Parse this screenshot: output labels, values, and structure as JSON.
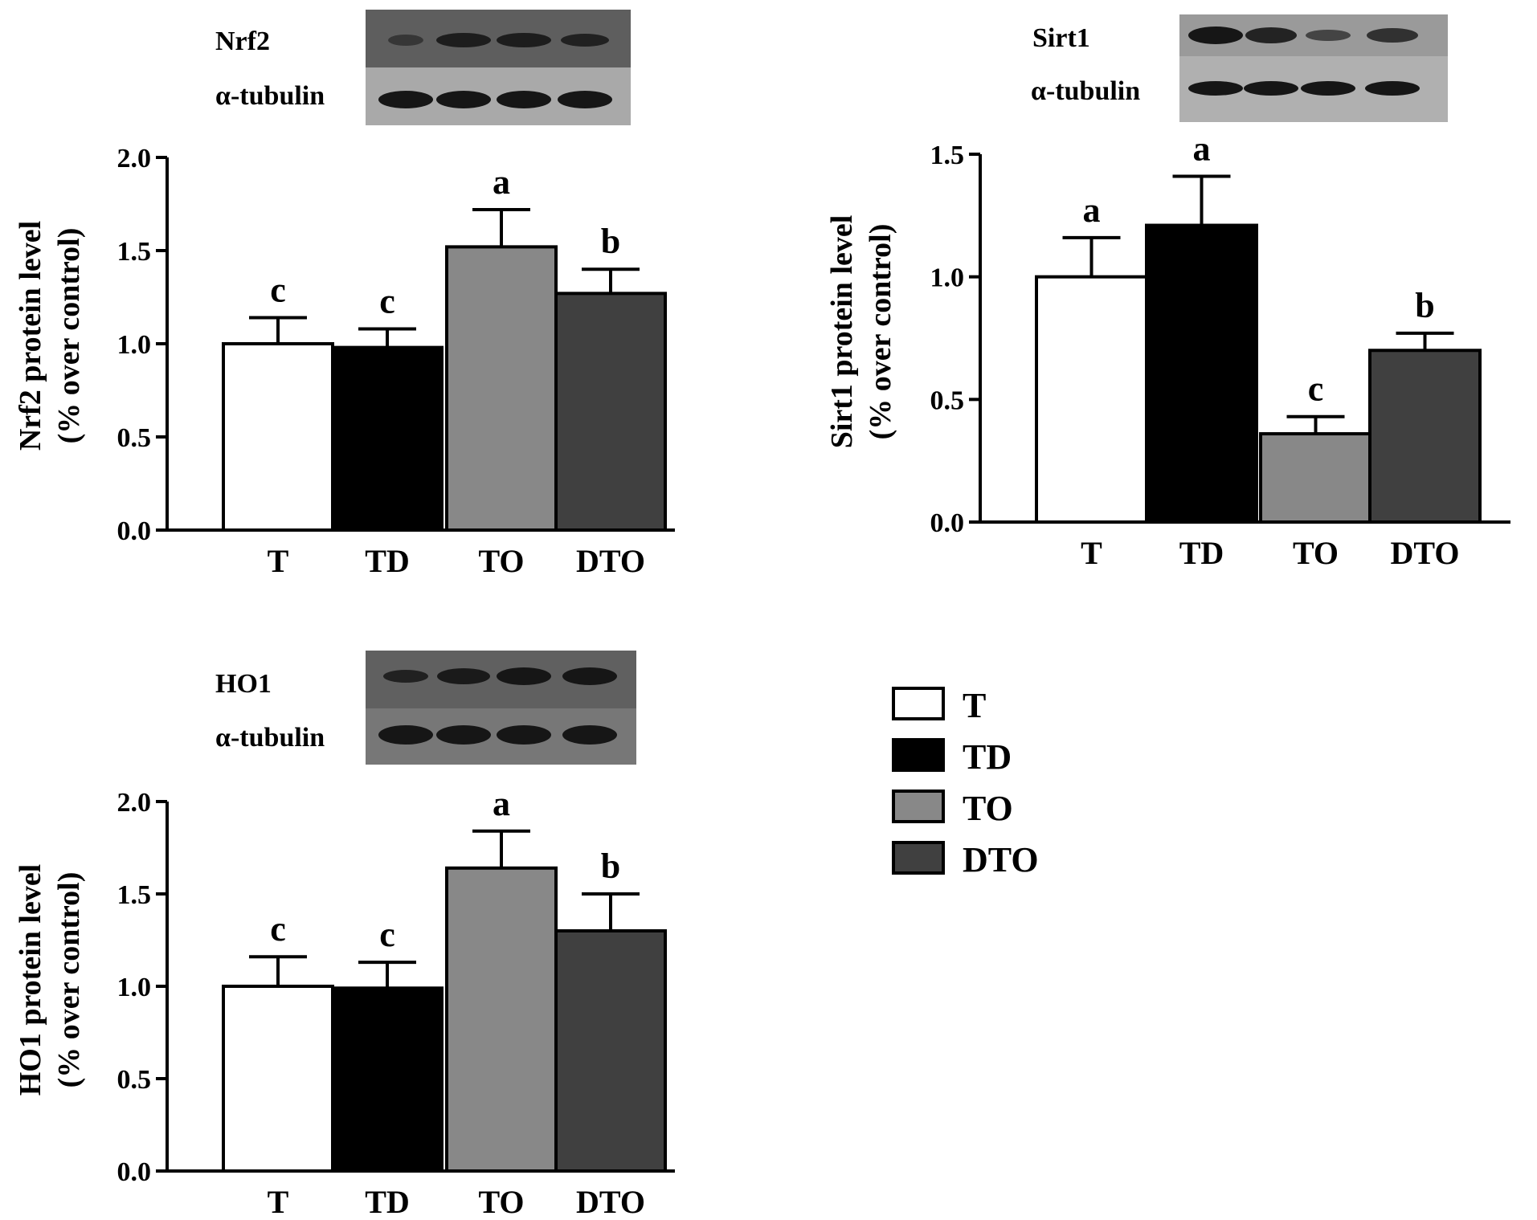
{
  "chart_data": [
    {
      "type": "bar",
      "panel": "Nrf2",
      "blot": {
        "labels": [
          "Nrf2",
          "α-tubulin"
        ]
      },
      "categories": [
        "T",
        "TD",
        "TO",
        "DTO"
      ],
      "values": [
        1.0,
        0.98,
        1.52,
        1.27
      ],
      "errors": [
        0.14,
        0.1,
        0.2,
        0.13
      ],
      "significance": [
        "c",
        "c",
        "a",
        "b"
      ],
      "ylabel_lines": [
        "Nrf2 protein level",
        "(% over control)"
      ],
      "ylim": [
        0,
        2.0
      ],
      "yticks": [
        "0.0",
        "0.5",
        "1.0",
        "1.5",
        "2.0"
      ]
    },
    {
      "type": "bar",
      "panel": "Sirt1",
      "blot": {
        "labels": [
          "Sirt1",
          "α-tubulin"
        ]
      },
      "categories": [
        "T",
        "TD",
        "TO",
        "DTO"
      ],
      "values": [
        1.0,
        1.21,
        0.36,
        0.7
      ],
      "errors": [
        0.16,
        0.2,
        0.07,
        0.07
      ],
      "significance": [
        "a",
        "a",
        "c",
        "b"
      ],
      "ylabel_lines": [
        "Sirt1 protein level",
        "(% over control)"
      ],
      "ylim": [
        0,
        1.5
      ],
      "yticks": [
        "0.0",
        "0.5",
        "1.0",
        "1.5"
      ]
    },
    {
      "type": "bar",
      "panel": "HO1",
      "blot": {
        "labels": [
          "HO1",
          "α-tubulin"
        ]
      },
      "categories": [
        "T",
        "TD",
        "TO",
        "DTO"
      ],
      "values": [
        1.0,
        0.99,
        1.64,
        1.3
      ],
      "errors": [
        0.16,
        0.14,
        0.2,
        0.2
      ],
      "significance": [
        "c",
        "c",
        "a",
        "b"
      ],
      "ylabel_lines": [
        "HO1 protein level",
        "(% over control)"
      ],
      "ylim": [
        0,
        2.0
      ],
      "yticks": [
        "0.0",
        "0.5",
        "1.0",
        "1.5",
        "2.0"
      ]
    }
  ],
  "legend": {
    "items": [
      {
        "label": "T",
        "color": "#ffffff"
      },
      {
        "label": "TD",
        "color": "#000000"
      },
      {
        "label": "TO",
        "color": "#888888"
      },
      {
        "label": "DTO",
        "color": "#404040"
      }
    ]
  },
  "bar_colors": [
    "#ffffff",
    "#000000",
    "#888888",
    "#404040"
  ],
  "blot_colors": {
    "upper_bg": "#5e5e5e",
    "lower_bg": "#a8a8a8",
    "band": "#161616"
  }
}
